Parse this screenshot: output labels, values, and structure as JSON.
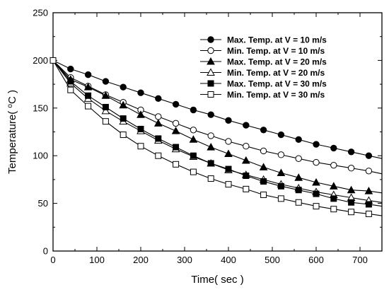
{
  "chart_data": {
    "type": "line",
    "xlabel": "Time( sec )",
    "ylabel_parts": {
      "prefix": "Temperature( ",
      "sup": "o",
      "suffix": "C )"
    },
    "xlim": [
      0,
      750
    ],
    "ylim": [
      0,
      250
    ],
    "xticks": [
      0,
      100,
      200,
      300,
      400,
      500,
      600,
      700
    ],
    "yticks": [
      0,
      50,
      100,
      150,
      200,
      250
    ],
    "grid": false,
    "legend_position": "top-right",
    "x": [
      0,
      40,
      80,
      120,
      160,
      200,
      240,
      280,
      320,
      360,
      400,
      440,
      480,
      520,
      560,
      600,
      640,
      680,
      720
    ],
    "series": [
      {
        "name": "Max. Temp. at V = 10 m/s",
        "marker": "circle-filled",
        "values": [
          200,
          191,
          185,
          178,
          172,
          166,
          160,
          154,
          148,
          143,
          137,
          132,
          127,
          122,
          117,
          112,
          108,
          104,
          100
        ],
        "line_end": 97
      },
      {
        "name": "Min.  Temp. at V = 10 m/s",
        "marker": "circle-open",
        "values": [
          200,
          182,
          173,
          164,
          156,
          148,
          141,
          134,
          127,
          121,
          115,
          110,
          105,
          101,
          97,
          93,
          90,
          87,
          84
        ],
        "line_end": 81
      },
      {
        "name": "Max. Temp. at V = 20 m/s",
        "marker": "triangle-filled",
        "values": [
          200,
          180,
          172,
          163,
          153,
          143,
          134,
          126,
          117,
          109,
          102,
          95,
          88,
          82,
          77,
          72,
          68,
          64,
          63
        ],
        "line_end": 61
      },
      {
        "name": "Min.  Temp. at V = 20 m/s",
        "marker": "triangle-open",
        "values": [
          200,
          176,
          160,
          147,
          136,
          126,
          116,
          107,
          99,
          92,
          85,
          80,
          75,
          70,
          66,
          62,
          59,
          56,
          53
        ],
        "line_end": 51
      },
      {
        "name": "Max. Temp. at V = 30 m/s",
        "marker": "square-filled",
        "values": [
          200,
          178,
          163,
          151,
          139,
          128,
          118,
          109,
          100,
          92,
          86,
          79,
          73,
          68,
          64,
          60,
          55,
          51,
          49
        ],
        "line_end": 47
      },
      {
        "name": "Min.  Temp. at V = 30 m/s",
        "marker": "square-open",
        "values": [
          200,
          169,
          152,
          136,
          122,
          110,
          100,
          91,
          83,
          76,
          70,
          65,
          59,
          55,
          51,
          47,
          44,
          41,
          39
        ],
        "line_end": 37
      }
    ]
  }
}
